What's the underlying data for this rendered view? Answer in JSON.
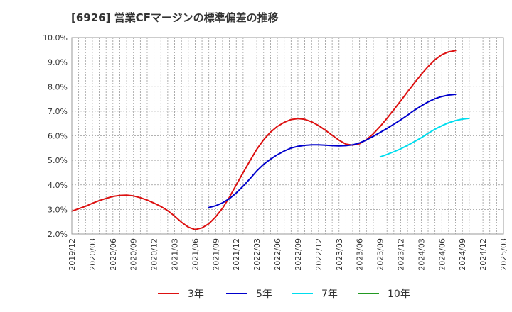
{
  "title": "[6926]  営業CFマージンの標準偏差の推移",
  "chart_data": {
    "type": "line",
    "title": "[6926]  営業CFマージンの標準偏差の推移",
    "xlabel": "",
    "ylabel": "",
    "ylim": [
      2.0,
      10.0
    ],
    "y_ticks": [
      2.0,
      3.0,
      4.0,
      5.0,
      6.0,
      7.0,
      8.0,
      9.0,
      10.0
    ],
    "y_tick_labels": [
      "2.0%",
      "3.0%",
      "4.0%",
      "5.0%",
      "6.0%",
      "7.0%",
      "8.0%",
      "9.0%",
      "10.0%"
    ],
    "x_start": "2019/12",
    "x_end": "2025/03",
    "x_tick_labels": [
      "2019/12",
      "2020/03",
      "2020/06",
      "2020/09",
      "2020/12",
      "2021/03",
      "2021/06",
      "2021/09",
      "2021/12",
      "2022/03",
      "2022/06",
      "2022/09",
      "2022/12",
      "2023/03",
      "2023/06",
      "2023/09",
      "2023/12",
      "2024/03",
      "2024/06",
      "2024/09",
      "2024/12",
      "2025/03"
    ],
    "grid": true,
    "legend_position": "bottom",
    "series": [
      {
        "name": "3年",
        "color": "#dd1111",
        "points": [
          [
            "2019/12",
            2.93
          ],
          [
            "2020/01",
            3.03
          ],
          [
            "2020/02",
            3.13
          ],
          [
            "2020/03",
            3.25
          ],
          [
            "2020/04",
            3.36
          ],
          [
            "2020/05",
            3.45
          ],
          [
            "2020/06",
            3.53
          ],
          [
            "2020/07",
            3.57
          ],
          [
            "2020/08",
            3.58
          ],
          [
            "2020/09",
            3.55
          ],
          [
            "2020/10",
            3.48
          ],
          [
            "2020/11",
            3.38
          ],
          [
            "2020/12",
            3.26
          ],
          [
            "2021/01",
            3.12
          ],
          [
            "2021/02",
            2.95
          ],
          [
            "2021/03",
            2.73
          ],
          [
            "2021/04",
            2.48
          ],
          [
            "2021/05",
            2.28
          ],
          [
            "2021/06",
            2.18
          ],
          [
            "2021/07",
            2.25
          ],
          [
            "2021/08",
            2.42
          ],
          [
            "2021/09",
            2.7
          ],
          [
            "2021/10",
            3.05
          ],
          [
            "2021/11",
            3.5
          ],
          [
            "2021/12",
            4.0
          ],
          [
            "2022/01",
            4.5
          ],
          [
            "2022/02",
            4.98
          ],
          [
            "2022/03",
            5.45
          ],
          [
            "2022/04",
            5.84
          ],
          [
            "2022/05",
            6.15
          ],
          [
            "2022/06",
            6.38
          ],
          [
            "2022/07",
            6.55
          ],
          [
            "2022/08",
            6.66
          ],
          [
            "2022/09",
            6.7
          ],
          [
            "2022/10",
            6.67
          ],
          [
            "2022/11",
            6.57
          ],
          [
            "2022/12",
            6.42
          ],
          [
            "2023/01",
            6.23
          ],
          [
            "2023/02",
            6.02
          ],
          [
            "2023/03",
            5.82
          ],
          [
            "2023/04",
            5.66
          ],
          [
            "2023/05",
            5.62
          ],
          [
            "2023/06",
            5.68
          ],
          [
            "2023/07",
            5.84
          ],
          [
            "2023/08",
            6.08
          ],
          [
            "2023/09",
            6.38
          ],
          [
            "2023/10",
            6.71
          ],
          [
            "2023/11",
            7.06
          ],
          [
            "2023/12",
            7.42
          ],
          [
            "2024/01",
            7.79
          ],
          [
            "2024/02",
            8.15
          ],
          [
            "2024/03",
            8.5
          ],
          [
            "2024/04",
            8.82
          ],
          [
            "2024/05",
            9.1
          ],
          [
            "2024/06",
            9.3
          ],
          [
            "2024/07",
            9.42
          ],
          [
            "2024/08",
            9.47
          ]
        ]
      },
      {
        "name": "5年",
        "color": "#0000cc",
        "points": [
          [
            "2021/08",
            3.08
          ],
          [
            "2021/09",
            3.15
          ],
          [
            "2021/10",
            3.27
          ],
          [
            "2021/11",
            3.44
          ],
          [
            "2021/12",
            3.67
          ],
          [
            "2022/01",
            3.95
          ],
          [
            "2022/02",
            4.25
          ],
          [
            "2022/03",
            4.57
          ],
          [
            "2022/04",
            4.84
          ],
          [
            "2022/05",
            5.05
          ],
          [
            "2022/06",
            5.23
          ],
          [
            "2022/07",
            5.38
          ],
          [
            "2022/08",
            5.5
          ],
          [
            "2022/09",
            5.57
          ],
          [
            "2022/10",
            5.61
          ],
          [
            "2022/11",
            5.63
          ],
          [
            "2022/12",
            5.63
          ],
          [
            "2023/01",
            5.62
          ],
          [
            "2023/02",
            5.6
          ],
          [
            "2023/03",
            5.59
          ],
          [
            "2023/04",
            5.6
          ],
          [
            "2023/05",
            5.63
          ],
          [
            "2023/06",
            5.71
          ],
          [
            "2023/07",
            5.83
          ],
          [
            "2023/08",
            5.98
          ],
          [
            "2023/09",
            6.14
          ],
          [
            "2023/10",
            6.3
          ],
          [
            "2023/11",
            6.47
          ],
          [
            "2023/12",
            6.65
          ],
          [
            "2024/01",
            6.84
          ],
          [
            "2024/02",
            7.04
          ],
          [
            "2024/03",
            7.22
          ],
          [
            "2024/04",
            7.38
          ],
          [
            "2024/05",
            7.51
          ],
          [
            "2024/06",
            7.6
          ],
          [
            "2024/07",
            7.66
          ],
          [
            "2024/08",
            7.69
          ]
        ]
      },
      {
        "name": "7年",
        "color": "#00ddee",
        "points": [
          [
            "2023/09",
            5.14
          ],
          [
            "2023/10",
            5.24
          ],
          [
            "2023/11",
            5.35
          ],
          [
            "2023/12",
            5.47
          ],
          [
            "2024/01",
            5.61
          ],
          [
            "2024/02",
            5.76
          ],
          [
            "2024/03",
            5.92
          ],
          [
            "2024/04",
            6.1
          ],
          [
            "2024/05",
            6.27
          ],
          [
            "2024/06",
            6.41
          ],
          [
            "2024/07",
            6.53
          ],
          [
            "2024/08",
            6.62
          ],
          [
            "2024/09",
            6.68
          ],
          [
            "2024/10",
            6.71
          ]
        ]
      },
      {
        "name": "10年",
        "color": "#229922",
        "points": []
      }
    ]
  }
}
